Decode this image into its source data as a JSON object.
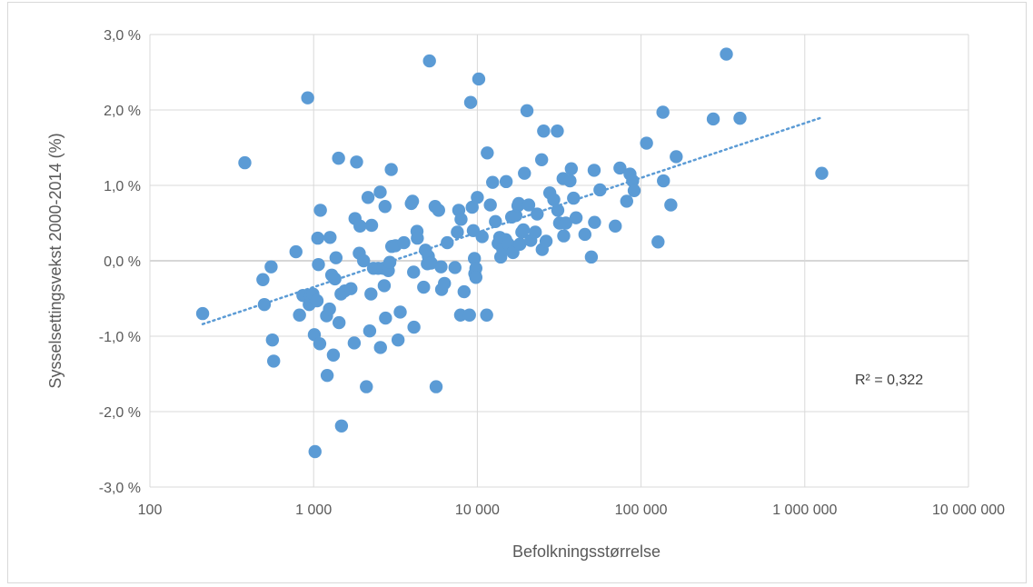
{
  "chart_data": {
    "type": "scatter",
    "title": "",
    "xlabel": "Befolkningsstørrelse",
    "ylabel": "Sysselsettingsvekst 2000-2014 (%)",
    "x_scale": "log",
    "xlim": [
      100,
      10000000
    ],
    "ylim": [
      -3.0,
      3.0
    ],
    "x_tick_values": [
      100,
      1000,
      10000,
      100000,
      1000000,
      10000000
    ],
    "x_tick_labels": [
      "100",
      "1 000",
      "10 000",
      "100 000",
      "1 000 000",
      "10 000 000"
    ],
    "y_tick_values": [
      3,
      2,
      1,
      0,
      -1,
      -2,
      -3
    ],
    "y_tick_labels": [
      "3,0 %",
      "2,0 %",
      "1,0 %",
      "0,0 %",
      "-1,0 %",
      "-2,0 %",
      "-3,0 %"
    ],
    "grid": true,
    "legend": "none",
    "marker_color": "#5b9bd5",
    "trendline": {
      "type": "logarithmic",
      "style": "dotted",
      "color": "#5b9bd5",
      "start": [
        210,
        -0.84
      ],
      "end": [
        1270000,
        1.9
      ],
      "r_squared_label": "R² = 0,322"
    },
    "points": [
      [
        210,
        -0.7
      ],
      [
        380,
        1.3
      ],
      [
        490,
        -0.25
      ],
      [
        500,
        -0.58
      ],
      [
        550,
        -0.08
      ],
      [
        560,
        -1.05
      ],
      [
        570,
        -1.33
      ],
      [
        780,
        0.12
      ],
      [
        820,
        -0.72
      ],
      [
        860,
        -0.46
      ],
      [
        920,
        2.16
      ],
      [
        940,
        -0.58
      ],
      [
        960,
        -0.46
      ],
      [
        990,
        -0.44
      ],
      [
        1010,
        -0.98
      ],
      [
        1020,
        -2.53
      ],
      [
        1050,
        -0.53
      ],
      [
        1060,
        0.3
      ],
      [
        1070,
        -0.05
      ],
      [
        1090,
        -1.1
      ],
      [
        1100,
        0.67
      ],
      [
        1200,
        -0.73
      ],
      [
        1210,
        -1.52
      ],
      [
        1250,
        -0.64
      ],
      [
        1260,
        0.31
      ],
      [
        1290,
        -0.19
      ],
      [
        1320,
        -1.25
      ],
      [
        1350,
        -0.24
      ],
      [
        1370,
        0.04
      ],
      [
        1420,
        1.36
      ],
      [
        1430,
        -0.82
      ],
      [
        1470,
        -0.44
      ],
      [
        1480,
        -2.19
      ],
      [
        1550,
        -0.4
      ],
      [
        1690,
        -0.37
      ],
      [
        1770,
        -1.09
      ],
      [
        1790,
        0.56
      ],
      [
        1830,
        1.31
      ],
      [
        1900,
        0.1
      ],
      [
        1920,
        0.46
      ],
      [
        2020,
        0.0
      ],
      [
        2100,
        -1.67
      ],
      [
        2150,
        0.84
      ],
      [
        2200,
        -0.93
      ],
      [
        2240,
        -0.44
      ],
      [
        2260,
        0.47
      ],
      [
        2320,
        -0.1
      ],
      [
        2480,
        -0.1
      ],
      [
        2550,
        0.91
      ],
      [
        2560,
        -1.15
      ],
      [
        2660,
        -0.1
      ],
      [
        2700,
        -0.33
      ],
      [
        2730,
        0.72
      ],
      [
        2750,
        -0.76
      ],
      [
        2860,
        -0.13
      ],
      [
        2920,
        -0.02
      ],
      [
        2980,
        1.21
      ],
      [
        3000,
        0.19
      ],
      [
        3160,
        0.2
      ],
      [
        3280,
        -1.05
      ],
      [
        3380,
        -0.68
      ],
      [
        3560,
        0.24
      ],
      [
        3950,
        0.76
      ],
      [
        4020,
        0.79
      ],
      [
        4080,
        -0.15
      ],
      [
        4100,
        -0.88
      ],
      [
        4280,
        0.39
      ],
      [
        4300,
        0.3
      ],
      [
        4700,
        -0.35
      ],
      [
        4820,
        0.14
      ],
      [
        4950,
        -0.04
      ],
      [
        5020,
        0.06
      ],
      [
        5100,
        2.65
      ],
      [
        5220,
        -0.03
      ],
      [
        5520,
        0.72
      ],
      [
        5600,
        -1.67
      ],
      [
        5800,
        0.67
      ],
      [
        6000,
        -0.08
      ],
      [
        6050,
        -0.38
      ],
      [
        6300,
        -0.3
      ],
      [
        6550,
        0.24
      ],
      [
        7300,
        -0.09
      ],
      [
        7550,
        0.38
      ],
      [
        7700,
        0.67
      ],
      [
        7900,
        -0.72
      ],
      [
        7950,
        0.55
      ],
      [
        8300,
        -0.41
      ],
      [
        8950,
        -0.72
      ],
      [
        9100,
        2.1
      ],
      [
        9300,
        0.71
      ],
      [
        9450,
        0.4
      ],
      [
        9600,
        0.03
      ],
      [
        9650,
        -0.17
      ],
      [
        9800,
        -0.1
      ],
      [
        9800,
        -0.22
      ],
      [
        10000,
        0.84
      ],
      [
        10200,
        2.41
      ],
      [
        10700,
        0.32
      ],
      [
        11400,
        -0.72
      ],
      [
        11500,
        1.43
      ],
      [
        12000,
        0.74
      ],
      [
        12400,
        1.04
      ],
      [
        12900,
        0.52
      ],
      [
        13400,
        0.23
      ],
      [
        13700,
        0.31
      ],
      [
        13900,
        0.05
      ],
      [
        14300,
        0.15
      ],
      [
        14900,
        0.28
      ],
      [
        15000,
        1.05
      ],
      [
        15500,
        0.22
      ],
      [
        16200,
        0.58
      ],
      [
        16500,
        0.11
      ],
      [
        17200,
        0.6
      ],
      [
        17700,
        0.73
      ],
      [
        17900,
        0.76
      ],
      [
        18200,
        0.22
      ],
      [
        18700,
        0.38
      ],
      [
        19100,
        0.41
      ],
      [
        19400,
        1.16
      ],
      [
        20100,
        1.99
      ],
      [
        20600,
        0.74
      ],
      [
        21200,
        0.27
      ],
      [
        22600,
        0.38
      ],
      [
        23200,
        0.62
      ],
      [
        24700,
        1.34
      ],
      [
        24900,
        0.15
      ],
      [
        25400,
        1.72
      ],
      [
        26300,
        0.26
      ],
      [
        27700,
        0.9
      ],
      [
        29300,
        0.81
      ],
      [
        30800,
        1.72
      ],
      [
        31000,
        0.67
      ],
      [
        31800,
        0.5
      ],
      [
        33400,
        1.09
      ],
      [
        33700,
        0.33
      ],
      [
        34700,
        0.5
      ],
      [
        36800,
        1.06
      ],
      [
        37500,
        1.22
      ],
      [
        38700,
        0.83
      ],
      [
        40100,
        0.57
      ],
      [
        45400,
        0.35
      ],
      [
        49700,
        0.05
      ],
      [
        51700,
        1.2
      ],
      [
        52000,
        0.51
      ],
      [
        56100,
        0.94
      ],
      [
        69600,
        0.46
      ],
      [
        74300,
        1.23
      ],
      [
        81700,
        0.79
      ],
      [
        85600,
        1.15
      ],
      [
        88900,
        1.06
      ],
      [
        90800,
        0.93
      ],
      [
        108000,
        1.56
      ],
      [
        127000,
        0.25
      ],
      [
        136000,
        1.97
      ],
      [
        137000,
        1.06
      ],
      [
        152000,
        0.74
      ],
      [
        164000,
        1.38
      ],
      [
        276000,
        1.88
      ],
      [
        332000,
        2.74
      ],
      [
        402000,
        1.89
      ],
      [
        1270000,
        1.16
      ]
    ]
  }
}
